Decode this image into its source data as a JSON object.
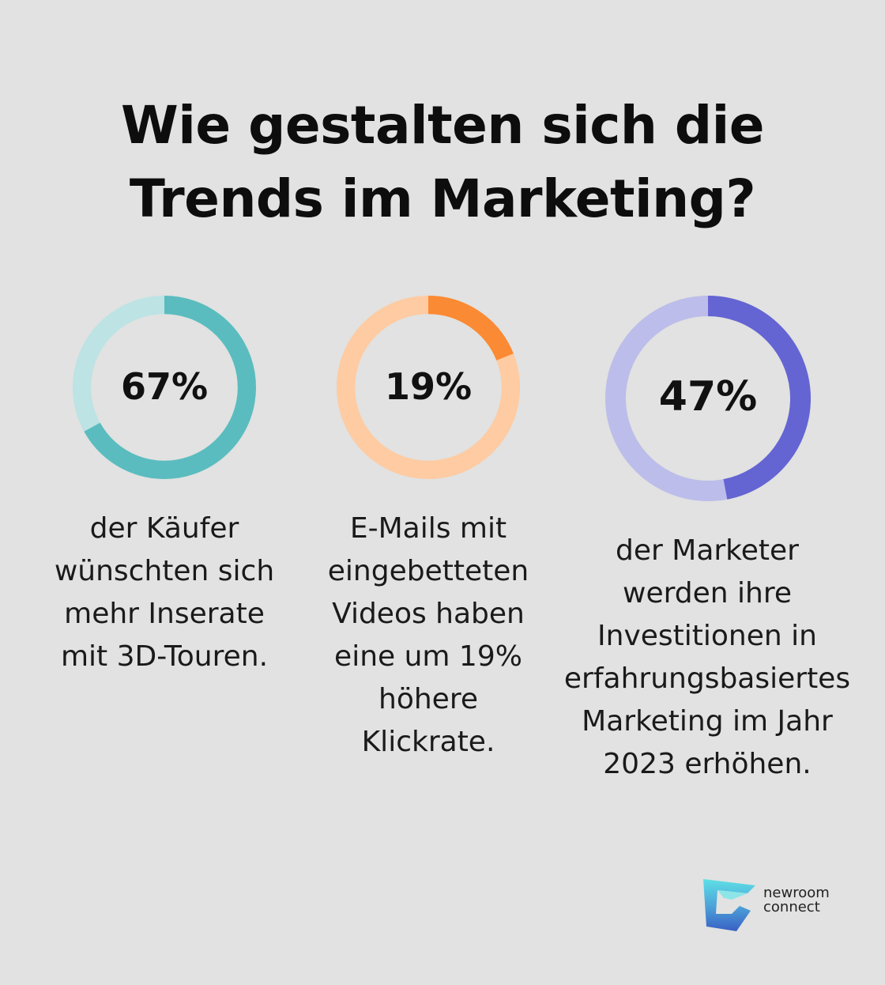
{
  "title": {
    "line1": "Wie gestalten sich die",
    "line2": "Trends im Marketing?"
  },
  "chart_data": {
    "type": "donut",
    "title": "Wie gestalten sich die Trends im Marketing?",
    "stats": [
      {
        "value": 67,
        "label": "67%",
        "caption": [
          "der Käufer",
          "wünschten sich",
          "mehr Inserate",
          "mit 3D-Touren."
        ],
        "color": "#5bbcbf",
        "track_color": "#bde3e4"
      },
      {
        "value": 19,
        "label": "19%",
        "caption": [
          "E-Mails mit",
          "eingebetteten",
          "Videos haben",
          "eine um 19%",
          "höhere",
          "Klickrate."
        ],
        "color": "#fb8a34",
        "track_color": "#fecba2"
      },
      {
        "value": 47,
        "label": "47%",
        "caption": [
          "der Marketer",
          "werden ihre",
          "Investitionen in",
          "erfahrungsbasiertes",
          "Marketing im Jahr",
          "2023 erhöhen."
        ],
        "color": "#6564d3",
        "track_color": "#bcbdea"
      }
    ]
  },
  "logo": {
    "line1": "newroom",
    "line2": "connect",
    "icon": "newroom-connect-logo-icon"
  }
}
